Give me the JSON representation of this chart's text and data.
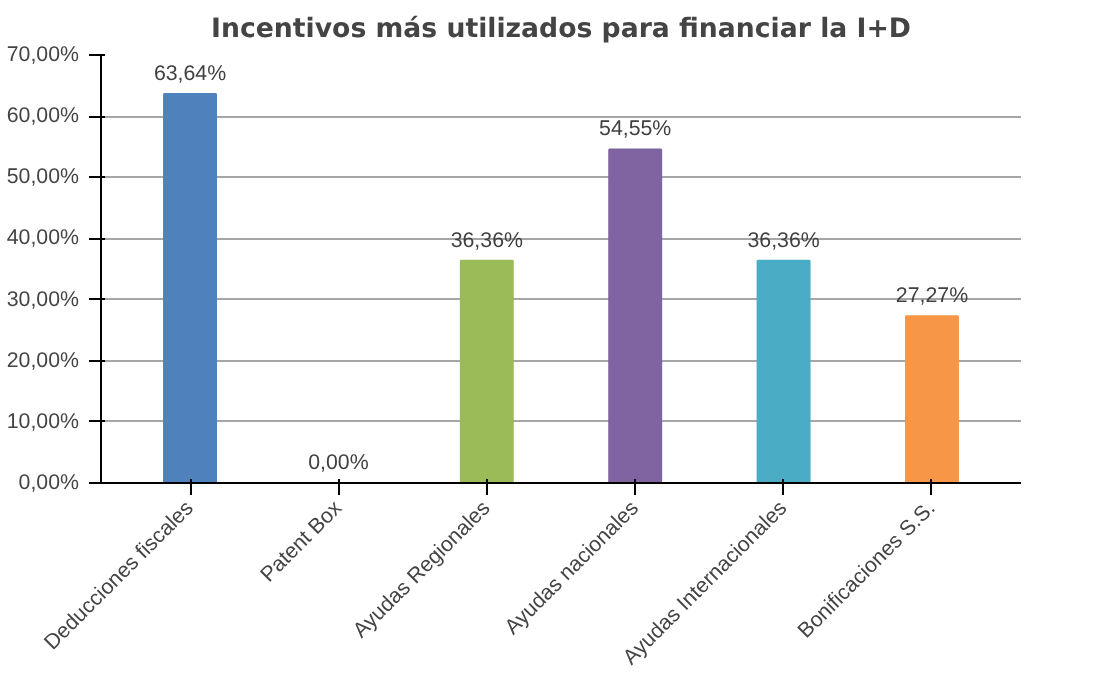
{
  "chart_data": {
    "type": "bar",
    "title": "Incentivos más utilizados para financiar la I+D",
    "categories": [
      "Deducciones fiscales",
      "Patent Box",
      "Ayudas Regionales",
      "Ayudas nacionales",
      "Ayudas Internacionales",
      "Bonificaciones S.S."
    ],
    "values": [
      63.64,
      0,
      36.36,
      54.55,
      36.36,
      27.27
    ],
    "colors": [
      "#4f81bd",
      "#c0504d",
      "#9bbb59",
      "#8064a2",
      "#4bacc6",
      "#f79646"
    ],
    "value_labels": [
      "63,64%",
      "0,00%",
      "36,36%",
      "54,55%",
      "36,36%",
      "27,27%"
    ],
    "ylim": [
      0,
      70
    ],
    "yticks": [
      {
        "value": 0,
        "label": "0,00%"
      },
      {
        "value": 10,
        "label": "10,00%"
      },
      {
        "value": 20,
        "label": "20,00%"
      },
      {
        "value": 30,
        "label": "30,00%"
      },
      {
        "value": 40,
        "label": "40,00%"
      },
      {
        "value": 50,
        "label": "50,00%"
      },
      {
        "value": 60,
        "label": "60,00%"
      },
      {
        "value": 70,
        "label": "70,00%"
      }
    ],
    "grid": "y"
  }
}
